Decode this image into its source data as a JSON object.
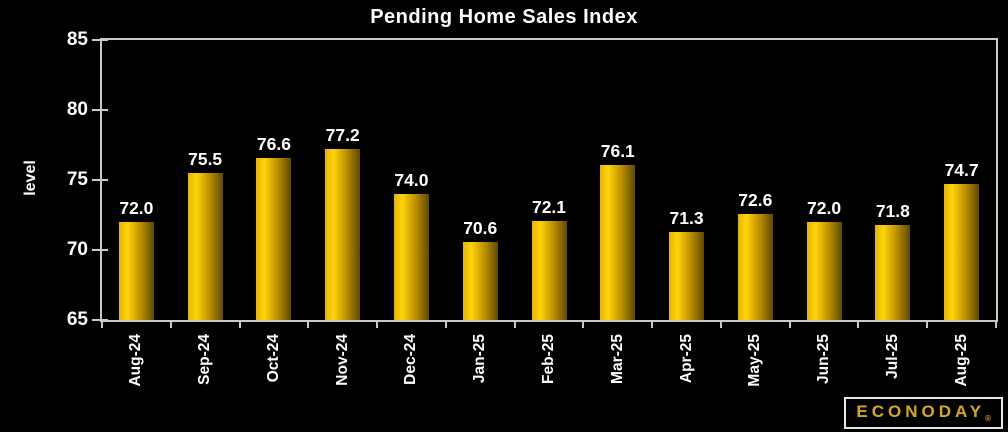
{
  "chart_data": {
    "type": "bar",
    "title": "Pending Home Sales Index",
    "xlabel": "",
    "ylabel": "level",
    "categories": [
      "Aug-24",
      "Sep-24",
      "Oct-24",
      "Nov-24",
      "Dec-24",
      "Jan-25",
      "Feb-25",
      "Mar-25",
      "Apr-25",
      "May-25",
      "Jun-25",
      "Jul-25",
      "Aug-25"
    ],
    "values": [
      72.0,
      75.5,
      76.6,
      77.2,
      74.0,
      70.6,
      72.1,
      76.1,
      71.3,
      72.6,
      72.0,
      71.8,
      74.7
    ],
    "value_label_decimals": 1,
    "ylim": [
      65,
      85
    ],
    "yticks": [
      65,
      70,
      75,
      80,
      85
    ],
    "grid": false,
    "legend_position": "none",
    "bar_single_series": true
  },
  "colors": {
    "background": "#000000",
    "axis": "#c9c9c9",
    "text": "#ffffff",
    "bar_edge_left": "#e6b400",
    "bar_bright": "#ffd40a",
    "bar_mid": "#c39500",
    "bar_edge_right": "#5e4a00",
    "logo_text": "#d9a814",
    "logo_border": "#e8e8e8"
  },
  "logo": {
    "text": "ECONODAY",
    "reg": "®"
  }
}
